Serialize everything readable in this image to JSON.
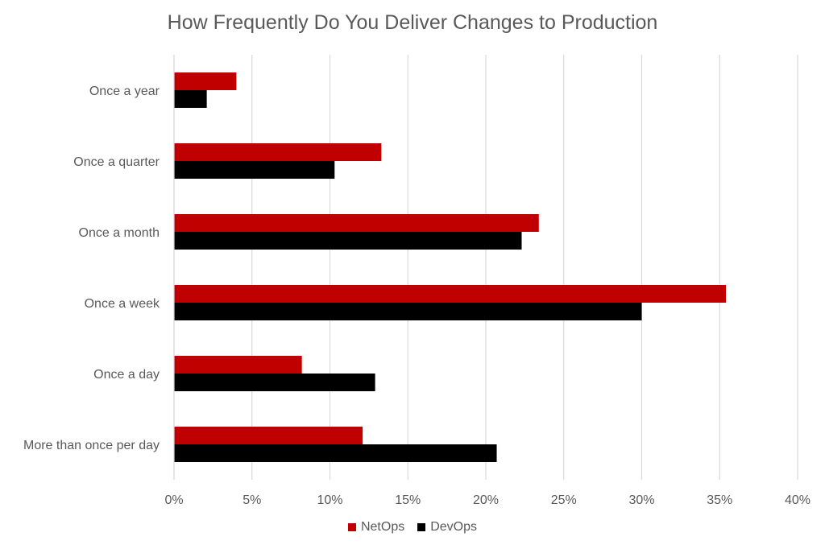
{
  "chart_data": {
    "type": "bar",
    "orientation": "horizontal",
    "title": "How Frequently Do You Deliver Changes to Production",
    "categories": [
      "Once a year",
      "Once a quarter",
      "Once a month",
      "Once a week",
      "Once a day",
      "More than once per day"
    ],
    "series": [
      {
        "name": "NetOps",
        "color": "#c00000",
        "values": [
          4.0,
          13.3,
          23.4,
          35.4,
          8.2,
          12.1
        ]
      },
      {
        "name": "DevOps",
        "color": "#000000",
        "values": [
          2.1,
          10.3,
          22.3,
          30.0,
          12.9,
          20.7
        ]
      }
    ],
    "xlim": [
      0,
      40
    ],
    "xticks": [
      "0%",
      "5%",
      "10%",
      "15%",
      "20%",
      "25%",
      "30%",
      "35%",
      "40%"
    ],
    "xtick_values": [
      0,
      5,
      10,
      15,
      20,
      25,
      30,
      35,
      40
    ],
    "grid": true,
    "legend_position": "bottom"
  }
}
